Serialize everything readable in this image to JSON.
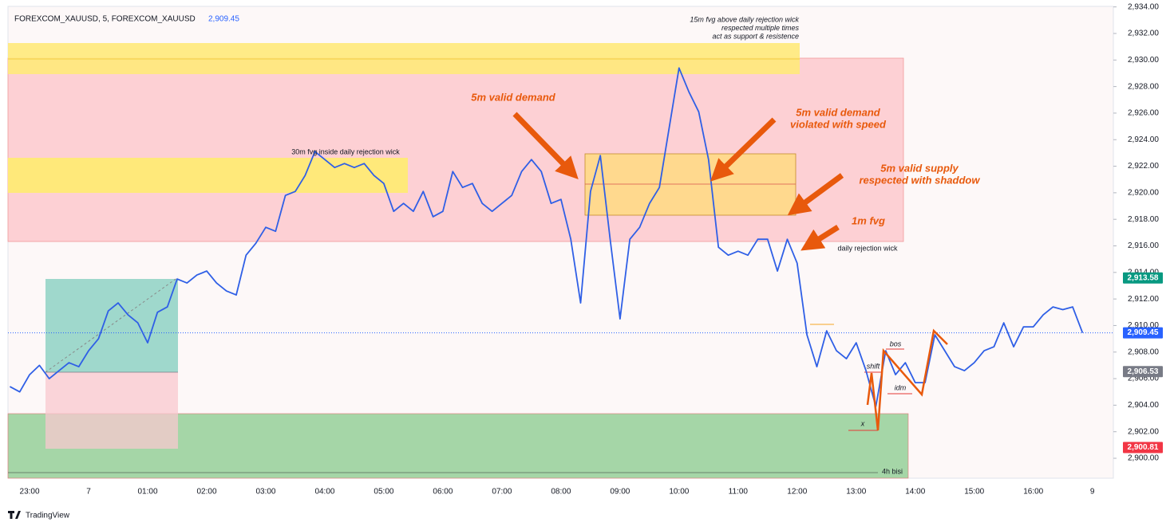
{
  "chart_data": {
    "type": "line",
    "symbol": "FOREXCOM_XAUUSD, 5, FOREXCOM_XAUUSD",
    "last_label": "2,909.45",
    "categories": [
      null,
      null,
      "23:00",
      null,
      null,
      null,
      null,
      null,
      "7",
      null,
      null,
      null,
      null,
      null,
      "01:00",
      null,
      null,
      null,
      null,
      null,
      "02:00",
      null,
      null,
      null,
      null,
      null,
      "03:00",
      null,
      null,
      null,
      null,
      null,
      "04:00",
      null,
      null,
      null,
      null,
      null,
      "05:00",
      null,
      null,
      null,
      null,
      null,
      "06:00",
      null,
      null,
      null,
      null,
      null,
      "07:00",
      null,
      null,
      null,
      null,
      null,
      "08:00",
      null,
      null,
      null,
      null,
      null,
      "09:00",
      null,
      null,
      null,
      null,
      null,
      "10:00",
      null,
      null,
      null,
      null,
      null,
      "11:00",
      null,
      null,
      null,
      null,
      null,
      "12:00",
      null,
      null,
      null,
      null,
      null,
      "13:00",
      null,
      null,
      null,
      null,
      null,
      "14:00",
      null,
      null,
      null,
      null,
      null,
      "15:00",
      null,
      null,
      null,
      null,
      null,
      "16:00",
      null,
      null,
      null,
      null,
      null,
      "9"
    ],
    "series": [
      {
        "name": "FOREXCOM_XAUUSD",
        "color": "#2f5fe6",
        "values": [
          2905.4,
          2905.0,
          2906.3,
          2907.0,
          2906.0,
          2906.6,
          2907.2,
          2906.9,
          2908.1,
          2909.0,
          2911.1,
          2911.7,
          2910.8,
          2910.2,
          2908.7,
          2911.0,
          2911.4,
          2913.5,
          2913.2,
          2913.8,
          2914.1,
          2913.2,
          2912.6,
          2912.3,
          2915.3,
          2916.2,
          2917.4,
          2917.1,
          2919.8,
          2920.1,
          2921.3,
          2923.1,
          2922.5,
          2921.9,
          2922.2,
          2921.9,
          2922.2,
          2921.3,
          2920.7,
          2918.6,
          2919.2,
          2918.6,
          2920.1,
          2918.2,
          2918.6,
          2921.6,
          2920.4,
          2920.7,
          2919.2,
          2918.6,
          2919.2,
          2919.8,
          2921.6,
          2922.5,
          2921.6,
          2919.2,
          2919.5,
          2916.5,
          2911.7,
          2920.1,
          2922.8,
          2916.5,
          2910.5,
          2916.5,
          2917.4,
          2919.2,
          2920.4,
          2924.9,
          2929.4,
          2927.6,
          2926.1,
          2922.5,
          2915.9,
          2915.3,
          2915.6,
          2915.3,
          2916.5,
          2916.5,
          2914.1,
          2916.5,
          2914.7,
          2909.3,
          2906.9,
          2909.6,
          2908.1,
          2907.5,
          2908.7,
          2906.6,
          2903.9,
          2908.1,
          2906.3,
          2907.2,
          2905.7,
          2905.7,
          2909.3,
          2908.1,
          2906.9,
          2906.6,
          2907.2,
          2908.1,
          2908.4,
          2910.2,
          2908.4,
          2909.9,
          2909.9,
          2910.8,
          2911.4,
          2911.2,
          2911.4,
          2909.45,
          null
        ]
      }
    ],
    "ylim": [
      2898.5,
      2934.04
    ],
    "yticks": [
      {
        "value": 2900,
        "label": "2,900.00"
      },
      {
        "value": 2902,
        "label": "2,902.00"
      },
      {
        "value": 2904,
        "label": "2,904.00"
      },
      {
        "value": 2906,
        "label": "2,906.00"
      },
      {
        "value": 2908,
        "label": "2,908.00"
      },
      {
        "value": 2910,
        "label": "2,910.00"
      },
      {
        "value": 2912,
        "label": "2,912.00"
      },
      {
        "value": 2914,
        "label": "2,914.00"
      },
      {
        "value": 2916,
        "label": "2,916.00"
      },
      {
        "value": 2918,
        "label": "2,918.00"
      },
      {
        "value": 2920,
        "label": "2,920.00"
      },
      {
        "value": 2922,
        "label": "2,922.00"
      },
      {
        "value": 2924,
        "label": "2,924.00"
      },
      {
        "value": 2926,
        "label": "2,926.00"
      },
      {
        "value": 2928,
        "label": "2,928.00"
      },
      {
        "value": 2930,
        "label": "2,930.00"
      },
      {
        "value": 2932,
        "label": "2,932.00"
      },
      {
        "value": 2934,
        "label": "2,934.00"
      }
    ],
    "price_tags": [
      {
        "value": 2913.58,
        "label": "2,913.58",
        "color": "#089981"
      },
      {
        "value": 2909.45,
        "label": "2,909.45",
        "color": "#2962ff"
      },
      {
        "value": 2906.53,
        "label": "2,906.53",
        "color": "#787b86"
      },
      {
        "value": 2900.81,
        "label": "2,900.81",
        "color": "#f23645"
      }
    ],
    "annotations": [
      {
        "lines": [
          "15m fvg above daily rejection wick",
          "respected multiple times",
          "act as support & resistence"
        ]
      },
      {
        "lines": [
          "30m fvg inside daily rejection wick"
        ]
      },
      {
        "lines": [
          "5m valid demand"
        ]
      },
      {
        "lines": [
          "5m valid demand",
          "violated with speed"
        ]
      },
      {
        "lines": [
          "5m valid supply",
          "respected with shaddow"
        ]
      },
      {
        "lines": [
          "1m fvg"
        ]
      },
      {
        "lines": [
          "daily rejection wick"
        ]
      },
      {
        "lines": [
          "bos"
        ]
      },
      {
        "lines": [
          "shift"
        ]
      },
      {
        "lines": [
          "idm"
        ]
      },
      {
        "lines": [
          "x"
        ]
      },
      {
        "lines": [
          "4h bisi"
        ]
      }
    ],
    "brand": "TradingView"
  }
}
